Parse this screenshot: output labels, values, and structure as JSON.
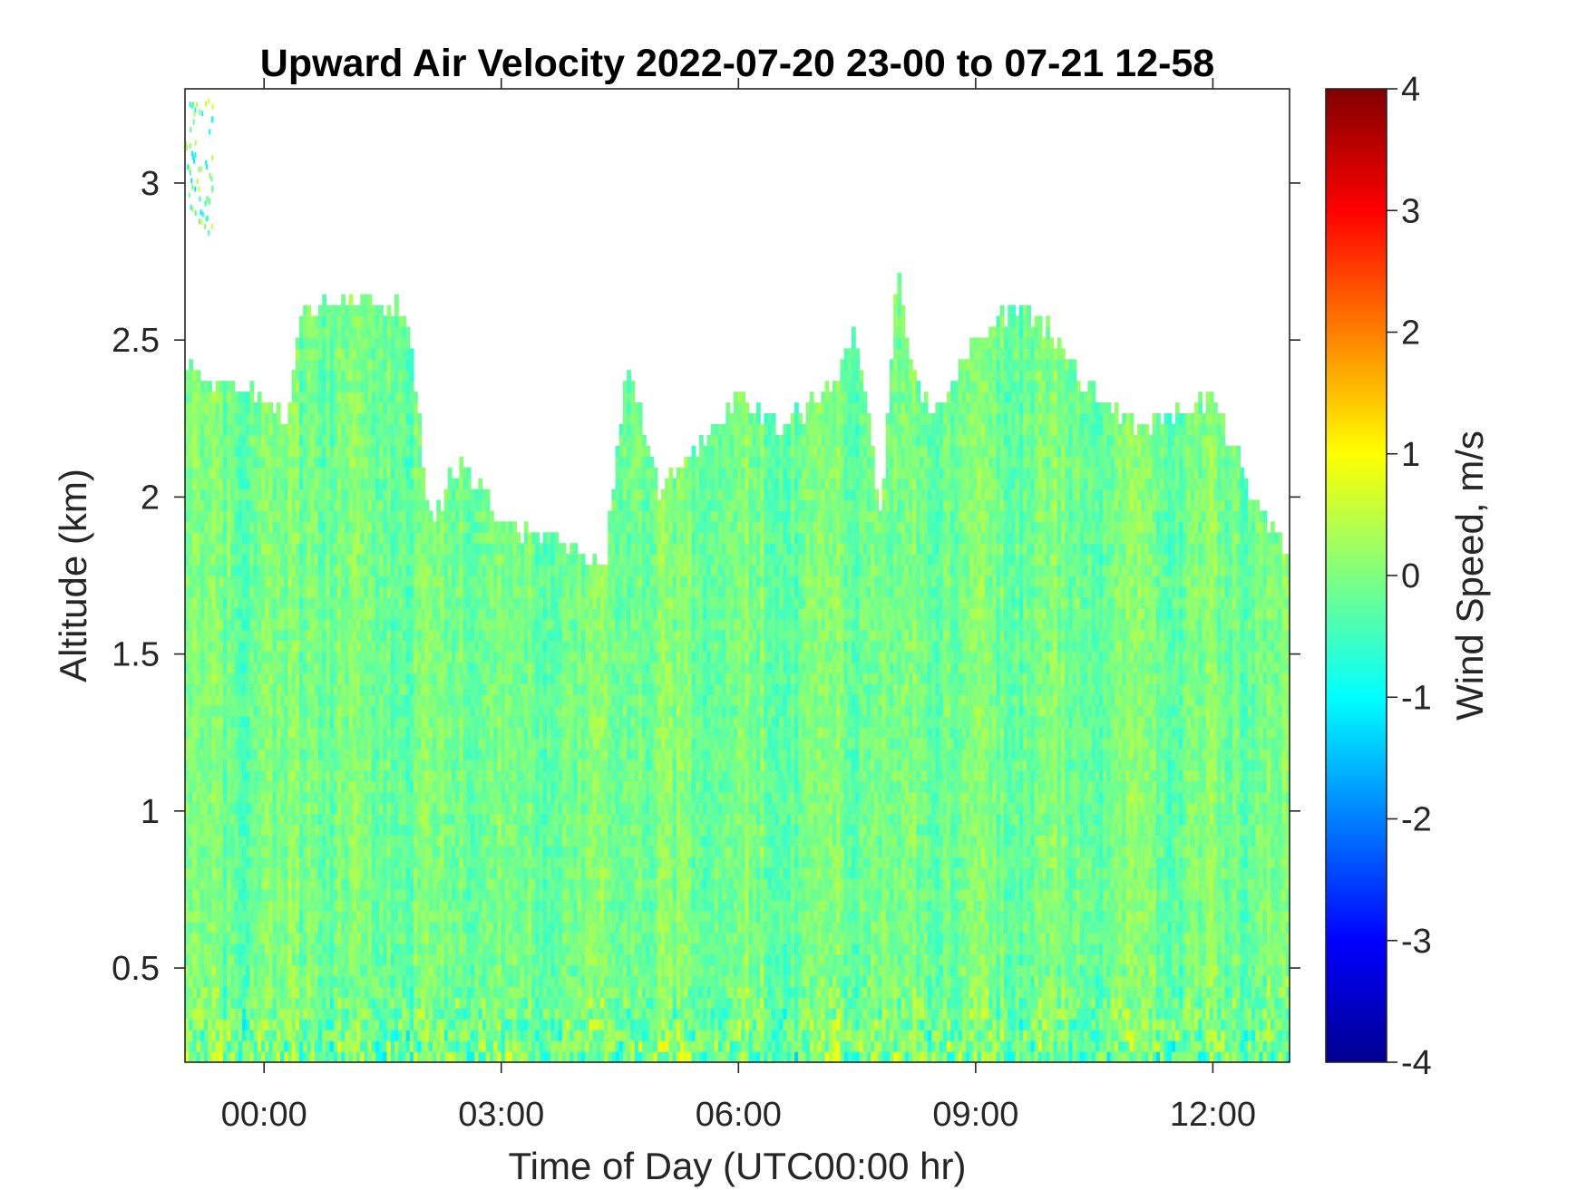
{
  "chart_data": {
    "type": "heatmap",
    "title": "Upward Air Velocity 2022-07-20 23-00 to 07-21 12-58",
    "xlabel": "Time of Day (UTC00:00 hr)",
    "ylabel": "Altitude (km)",
    "colorbar_label": "Wind Speed, m/s",
    "x_unit": "hours relative to 2022-07-21 00:00 UTC",
    "xlim": [
      -1,
      12.97
    ],
    "ylim": [
      0.2,
      3.3
    ],
    "x_ticks": [
      0,
      3,
      6,
      9,
      12
    ],
    "x_tick_labels": [
      "00:00",
      "03:00",
      "06:00",
      "09:00",
      "12:00"
    ],
    "y_ticks": [
      0.5,
      1,
      1.5,
      2,
      2.5,
      3
    ],
    "y_tick_labels": [
      "0.5",
      "1",
      "1.5",
      "2",
      "2.5",
      "3"
    ],
    "clim": [
      -4,
      4
    ],
    "colorbar_ticks": [
      4,
      3,
      2,
      1,
      0,
      -1,
      -2,
      -3,
      -4
    ],
    "colorbar_tick_labels": [
      "4",
      "3",
      "2",
      "1",
      "0",
      "-1",
      "-2",
      "-3",
      "-4"
    ],
    "colormap": "jet",
    "colormap_stops": [
      "#00008f",
      "#0000ff",
      "#00ffff",
      "#ffff00",
      "#ff0000",
      "#800000"
    ],
    "typical_value_range_m_s": [
      -1.2,
      0.8
    ],
    "data_top_altitude_km": {
      "x": [
        -1,
        -0.5,
        0,
        0.3,
        0.5,
        1.0,
        1.8,
        2.1,
        2.5,
        3.0,
        3.5,
        4.0,
        4.3,
        4.6,
        5.0,
        5.5,
        6.0,
        6.5,
        7.0,
        7.5,
        7.8,
        8.0,
        8.3,
        8.6,
        9.0,
        9.5,
        10.0,
        10.5,
        11.0,
        11.5,
        12.0,
        12.5,
        12.97
      ],
      "y": [
        2.4,
        2.35,
        2.3,
        2.2,
        2.6,
        2.6,
        2.6,
        1.9,
        2.1,
        1.9,
        1.85,
        1.8,
        1.75,
        2.4,
        2.0,
        2.15,
        2.3,
        2.2,
        2.3,
        2.5,
        1.9,
        2.7,
        2.3,
        2.3,
        2.5,
        2.6,
        2.5,
        2.3,
        2.2,
        2.25,
        2.3,
        2.0,
        1.8
      ]
    }
  }
}
